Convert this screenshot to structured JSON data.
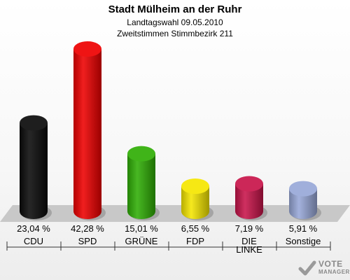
{
  "header": {
    "title": "Stadt Mülheim an der Ruhr",
    "subtitle1": "Landtagswahl 09.05.2010",
    "subtitle2": "Zweitstimmen Stimmbezirk 211"
  },
  "chart_data": {
    "type": "bar",
    "categories": [
      "CDU",
      "SPD",
      "GRÜNE",
      "FDP",
      "DIE LINKE",
      "Sonstige"
    ],
    "category_lines": [
      [
        "CDU"
      ],
      [
        "SPD"
      ],
      [
        "GRÜNE"
      ],
      [
        "FDP"
      ],
      [
        "DIE",
        "LINKE"
      ],
      [
        "Sonstige"
      ]
    ],
    "values": [
      23.04,
      42.28,
      15.01,
      6.55,
      7.19,
      5.91
    ],
    "value_labels": [
      "23,04 %",
      "42,28 %",
      "15,01 %",
      "6,55 %",
      "7,19 %",
      "5,91 %"
    ],
    "colors": [
      "#0a0a0a",
      "#ee0000",
      "#2fae05",
      "#f5e600",
      "#c8144a",
      "#98a8d8"
    ],
    "ylim": [
      0,
      45
    ],
    "grid": false
  },
  "logo": {
    "line1": "VOTE",
    "line2": "MANAGER"
  }
}
